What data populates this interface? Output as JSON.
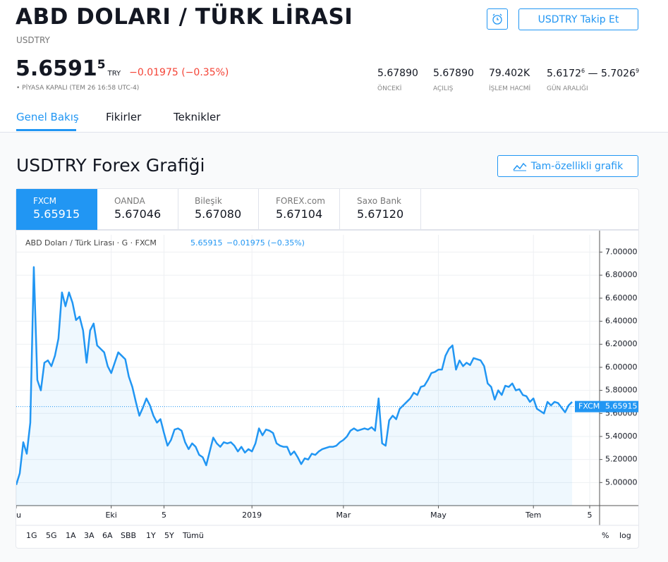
{
  "header": {
    "title": "ABD DOLARI / TÜRK LİRASI",
    "symbol": "USDTRY",
    "price_main": "5.6591",
    "price_last_digit": "5",
    "currency": "TRY",
    "change": "−0.01975 (−0.35%)",
    "status": "• PİYASA KAPALI (TEM 26 16:58 UTC-4)",
    "follow_button": "USDTRY Takip Et",
    "stats": [
      {
        "value": "5.67890",
        "label": "ÖNCEKİ"
      },
      {
        "value": "5.67890",
        "label": "AÇILIŞ"
      },
      {
        "value": "79.402K",
        "label": "İŞLEM HACMİ"
      }
    ],
    "day_range": {
      "low": "5.6172",
      "low_digit": "6",
      "sep": "—",
      "high": "5.7026",
      "high_digit": "9",
      "label": "GÜN ARALIĞI"
    }
  },
  "tabs": [
    "Genel Bakış",
    "Fikirler",
    "Teknikler"
  ],
  "section": {
    "title": "USDTRY Forex Grafiği",
    "button": "Tam-özellikli grafik"
  },
  "sources": [
    {
      "name": "FXCM",
      "price": "5.65915"
    },
    {
      "name": "OANDA",
      "price": "5.67046"
    },
    {
      "name": "Bileşik",
      "price": "5.67080"
    },
    {
      "name": "FOREX.com",
      "price": "5.67104"
    },
    {
      "name": "Saxo Bank",
      "price": "5.67120"
    }
  ],
  "ranges": [
    "1G",
    "5G",
    "1A",
    "3A",
    "6A",
    "SBB",
    "1Y",
    "5Y",
    "Tümü"
  ],
  "scale_buttons": [
    "%",
    "log"
  ],
  "chart_data": {
    "type": "line",
    "title": "ABD Doları / Türk Lirası · G · FXCM",
    "change": "−0.01975 (−0.35%)",
    "color": "#2196f3",
    "grid": true,
    "marker": {
      "label": "FXCM",
      "value": 5.65915
    },
    "ylim": [
      4.8,
      7.15
    ],
    "yticks": [
      {
        "value": 5,
        "label": "5.00000"
      },
      {
        "value": 5.2,
        "label": "5.20000"
      },
      {
        "value": 5.4,
        "label": "5.40000"
      },
      {
        "value": 5.6,
        "label": "5.60000"
      },
      {
        "value": 5.8,
        "label": "5.80000"
      },
      {
        "value": 6,
        "label": "6.00000"
      },
      {
        "value": 6.2,
        "label": "6.20000"
      },
      {
        "value": 6.4,
        "label": "6.40000"
      },
      {
        "value": 6.6,
        "label": "6.60000"
      },
      {
        "value": 6.8,
        "label": "6.80000"
      },
      {
        "value": 7,
        "label": "7.00000"
      }
    ],
    "categories": [
      "ğu",
      null,
      null,
      null,
      null,
      null,
      null,
      null,
      null,
      null,
      null,
      null,
      null,
      null,
      null,
      null,
      null,
      null,
      null,
      null,
      null,
      null,
      null,
      null,
      null,
      null,
      null,
      "Eki",
      null,
      null,
      null,
      null,
      null,
      null,
      null,
      null,
      null,
      null,
      null,
      null,
      null,
      null,
      "5",
      null,
      null,
      null,
      null,
      null,
      null,
      null,
      null,
      null,
      null,
      null,
      null,
      null,
      null,
      null,
      null,
      null,
      null,
      null,
      null,
      null,
      null,
      null,
      null,
      "2019",
      null,
      null,
      null,
      null,
      null,
      null,
      null,
      null,
      null,
      null,
      null,
      null,
      null,
      null,
      null,
      null,
      null,
      null,
      null,
      null,
      null,
      null,
      null,
      null,
      null,
      "Mar",
      null,
      null,
      null,
      null,
      null,
      null,
      null,
      null,
      null,
      null,
      null,
      null,
      null,
      null,
      null,
      null,
      null,
      null,
      null,
      null,
      null,
      null,
      null,
      null,
      null,
      null,
      "May",
      null,
      null,
      null,
      null,
      null,
      null,
      null,
      null,
      null,
      null,
      null,
      null,
      null,
      null,
      null,
      null,
      null,
      null,
      null,
      null,
      null,
      null,
      null,
      null,
      null,
      null,
      "Tem",
      null,
      null,
      null,
      null,
      null,
      null,
      null,
      null,
      null,
      null,
      null,
      null,
      null,
      null,
      null,
      "5"
    ],
    "values": [
      4.98,
      5.08,
      5.35,
      5.25,
      5.52,
      6.87,
      5.89,
      5.8,
      6.04,
      6.06,
      6.01,
      6.1,
      6.25,
      6.65,
      6.53,
      6.65,
      6.56,
      6.41,
      6.44,
      6.32,
      6.04,
      6.32,
      6.38,
      6.19,
      6.16,
      6.13,
      6.01,
      5.95,
      6.04,
      6.13,
      6.1,
      6.07,
      5.92,
      5.83,
      5.7,
      5.58,
      5.65,
      5.73,
      5.67,
      5.58,
      5.52,
      5.55,
      5.43,
      5.32,
      5.37,
      5.46,
      5.47,
      5.45,
      5.35,
      5.29,
      5.34,
      5.31,
      5.24,
      5.22,
      5.15,
      5.27,
      5.39,
      5.34,
      5.31,
      5.35,
      5.34,
      5.35,
      5.32,
      5.27,
      5.31,
      5.26,
      5.29,
      5.27,
      5.34,
      5.47,
      5.41,
      5.46,
      5.45,
      5.43,
      5.34,
      5.32,
      5.31,
      5.31,
      5.24,
      5.27,
      5.22,
      5.16,
      5.21,
      5.2,
      5.25,
      5.24,
      5.27,
      5.29,
      5.3,
      5.31,
      5.31,
      5.32,
      5.35,
      5.37,
      5.4,
      5.45,
      5.47,
      5.45,
      5.46,
      5.47,
      5.46,
      5.48,
      5.45,
      5.73,
      5.34,
      5.32,
      5.54,
      5.58,
      5.55,
      5.64,
      5.67,
      5.7,
      5.73,
      5.78,
      5.76,
      5.83,
      5.84,
      5.89,
      5.95,
      5.96,
      5.98,
      5.98,
      6.1,
      6.16,
      6.19,
      5.98,
      6.06,
      6.01,
      6.04,
      6.02,
      6.08,
      6.07,
      6.06,
      6.01,
      5.86,
      5.83,
      5.72,
      5.8,
      5.76,
      5.84,
      5.83,
      5.86,
      5.8,
      5.81,
      5.76,
      5.75,
      5.7,
      5.73,
      5.64,
      5.62,
      5.6,
      5.7,
      5.67,
      5.7,
      5.69,
      5.65,
      5.61,
      5.67,
      5.7,
      null,
      null,
      null,
      null,
      null
    ]
  }
}
